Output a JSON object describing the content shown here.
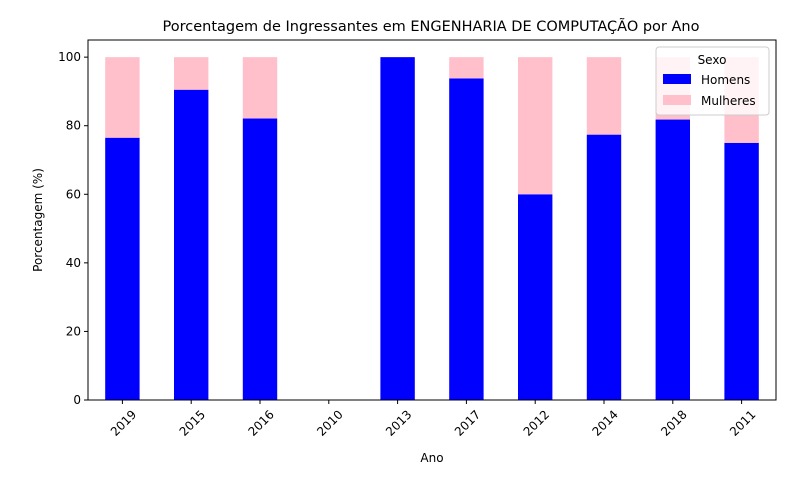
{
  "chart_data": {
    "type": "bar",
    "stacked": true,
    "title": "Porcentagem de Ingressantes em ENGENHARIA DE COMPUTAÇÃO por Ano",
    "xlabel": "Ano",
    "ylabel": "Porcentagem (%)",
    "categories": [
      "2019",
      "2015",
      "2016",
      "2010",
      "2013",
      "2017",
      "2012",
      "2014",
      "2018",
      "2011"
    ],
    "series": [
      {
        "name": "Homens",
        "color": "#0000ff",
        "values": [
          76.5,
          90.5,
          82.1,
          0,
          100,
          93.8,
          60,
          77.4,
          81.8,
          75
        ]
      },
      {
        "name": "Mulheres",
        "color": "#ffc0cb",
        "values": [
          23.5,
          9.5,
          17.9,
          0,
          0,
          6.2,
          40,
          22.6,
          18.2,
          25
        ]
      }
    ],
    "ylim": [
      0,
      105
    ],
    "yticks": [
      0,
      20,
      40,
      60,
      80,
      100
    ],
    "grid": false,
    "legend": {
      "title": "Sexo",
      "placement": "top-right"
    }
  }
}
